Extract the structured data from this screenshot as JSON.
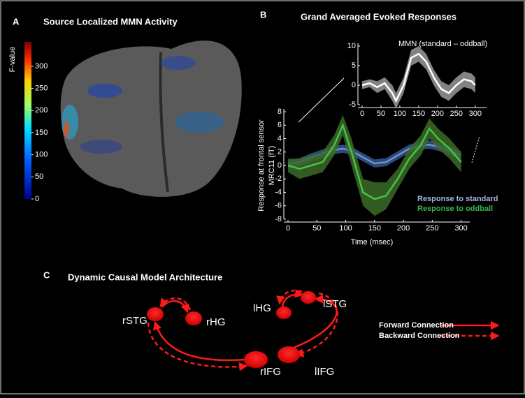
{
  "panel_a": {
    "letter": "A",
    "title": "Source Localized MMN Activity",
    "colorbar": {
      "label": "F-value",
      "lim": [
        0,
        355
      ],
      "ticks": [
        0,
        50,
        100,
        150,
        200,
        250,
        300
      ]
    }
  },
  "panel_b": {
    "letter": "B",
    "title": "Grand Averaged Evoked Responses"
  },
  "chart_data": [
    {
      "type": "line",
      "title": "MMN (standard – oddball)",
      "x": [
        0,
        20,
        40,
        60,
        80,
        90,
        110,
        130,
        150,
        170,
        190,
        210,
        230,
        250,
        270,
        290,
        300
      ],
      "xlim": [
        0,
        330
      ],
      "xticks": [
        0,
        50,
        100,
        150,
        200,
        250,
        300
      ],
      "ylim": [
        -5,
        10
      ],
      "yticks": [
        -5,
        0,
        5,
        10
      ],
      "series": [
        {
          "color": "#ffffff",
          "band_color": "#9a9a9a",
          "values": [
            0,
            0.5,
            -0.5,
            0.5,
            -2,
            -4,
            0,
            7,
            8,
            6,
            2,
            -1,
            -2,
            0,
            1.5,
            1,
            0
          ],
          "band": [
            1,
            1,
            1.5,
            1.5,
            2,
            2,
            2,
            2,
            2,
            2,
            2,
            2,
            2,
            2,
            2,
            2,
            2
          ]
        }
      ]
    },
    {
      "type": "line",
      "xlabel": "Time (msec)",
      "ylabel": [
        "Response at  frontal sensor",
        "MRC11  (fT)"
      ],
      "x": [
        0,
        20,
        40,
        60,
        80,
        95,
        110,
        130,
        150,
        170,
        190,
        210,
        230,
        245,
        260,
        280,
        300
      ],
      "xlim": [
        0,
        315
      ],
      "xticks": [
        0,
        50,
        100,
        150,
        200,
        250,
        300
      ],
      "ylim": [
        -8,
        8
      ],
      "yticks": [
        -8,
        -6,
        -4,
        -2,
        0,
        2,
        4,
        6,
        8
      ],
      "series": [
        {
          "name": "Response to standard",
          "color": "#6f8fc8",
          "band_color": "#34568f",
          "label_color": "#a3b6e6",
          "values": [
            0.2,
            0.5,
            1.2,
            1.8,
            2.3,
            2.5,
            2.2,
            1.2,
            0.3,
            0.5,
            1.5,
            2.5,
            3,
            3.1,
            2.8,
            2.2,
            1.5
          ],
          "band": [
            0.6,
            0.6,
            0.6,
            0.6,
            0.6,
            0.6,
            0.6,
            0.6,
            0.6,
            0.6,
            0.6,
            0.6,
            0.6,
            0.6,
            0.6,
            0.6,
            0.6
          ]
        },
        {
          "name": "Response to oddball",
          "color": "#45c24a",
          "band_color": "#3b6a27",
          "label_color": "#3cb34a",
          "values": [
            0,
            -0.5,
            0,
            0.5,
            3,
            6,
            2,
            -4,
            -5,
            -4.5,
            -2,
            1,
            3,
            5.5,
            4,
            2.5,
            0.5
          ],
          "band": [
            1,
            1.5,
            1.5,
            1.5,
            1.5,
            1.5,
            2,
            2,
            2.5,
            2,
            1.5,
            1.5,
            1.5,
            1.5,
            1.5,
            1.5,
            1.5
          ]
        }
      ]
    }
  ],
  "panel_c": {
    "letter": "C",
    "title": "Dynamic Causal Model Architecture",
    "nodes": [
      "rSTG",
      "rHG",
      "lHG",
      "lSTG",
      "rIFG",
      "lIFG"
    ],
    "legend": [
      "Forward Connection",
      "Backward Connection"
    ]
  }
}
